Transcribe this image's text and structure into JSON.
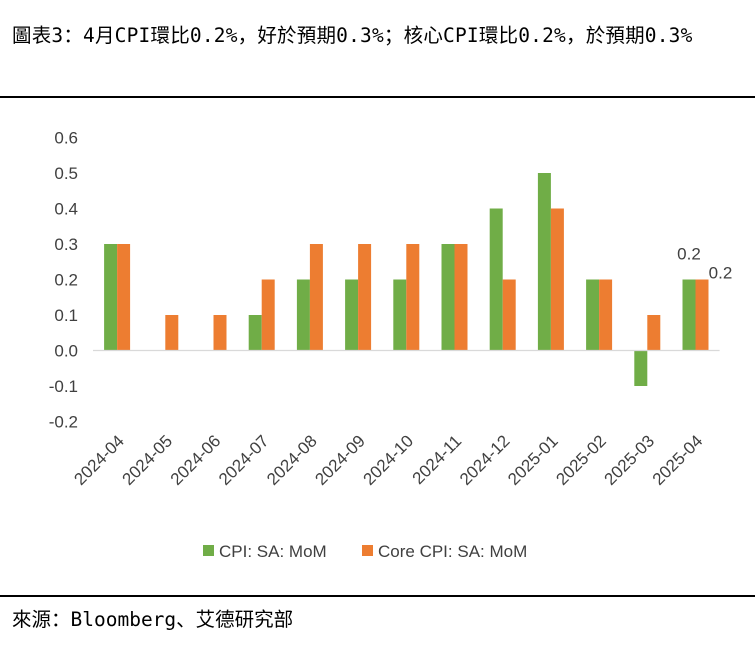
{
  "title": "圖表3：4月CPI環比0.2%，好於預期0.3%；核心CPI環比0.2%，於預期0.3%",
  "source": "來源：Bloomberg、艾德研究部",
  "colors": {
    "cpi": "#70AD47",
    "core": "#ED7D31",
    "axis": "#D9D9D9",
    "text": "#404040"
  },
  "chart_data": {
    "type": "bar",
    "categories": [
      "2024-04",
      "2024-05",
      "2024-06",
      "2024-07",
      "2024-08",
      "2024-09",
      "2024-10",
      "2024-11",
      "2024-12",
      "2025-01",
      "2025-02",
      "2025-03",
      "2025-04"
    ],
    "series": [
      {
        "name": "CPI: SA: MoM",
        "values": [
          0.3,
          null,
          null,
          0.1,
          0.2,
          0.2,
          0.2,
          0.3,
          0.4,
          0.5,
          0.2,
          -0.1,
          0.2
        ]
      },
      {
        "name": "Core CPI: SA: MoM",
        "values": [
          0.3,
          0.1,
          0.1,
          0.2,
          0.3,
          0.3,
          0.3,
          0.3,
          0.2,
          0.4,
          0.2,
          0.1,
          0.2
        ]
      }
    ],
    "ylim": [
      -0.2,
      0.6
    ],
    "yticks": [
      "0.6",
      "0.5",
      "0.4",
      "0.3",
      "0.2",
      "0.1",
      "0.0",
      "-0.1",
      "-0.2"
    ],
    "data_labels": [
      {
        "series": 0,
        "index": 12,
        "text": "0.2"
      },
      {
        "series": 1,
        "index": 12,
        "text": "0.2"
      }
    ],
    "legend": "bottom",
    "grid": false
  }
}
